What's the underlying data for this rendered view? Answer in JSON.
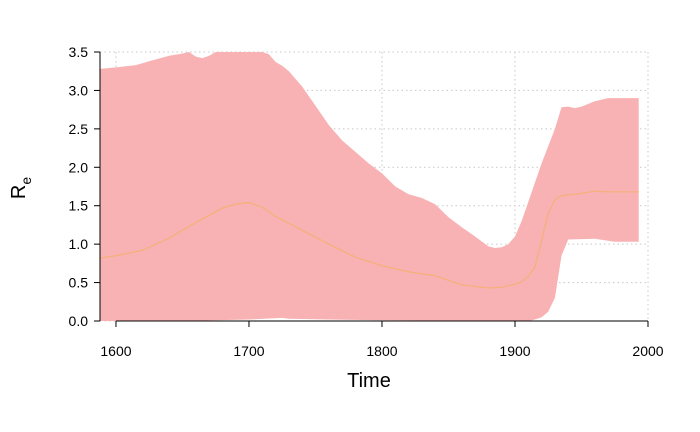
{
  "chart_data": {
    "type": "area",
    "xlabel": "Time",
    "ylabel": {
      "main": "R",
      "subscript": "e"
    },
    "xlim": [
      1588,
      2000
    ],
    "ylim": [
      0,
      3.5
    ],
    "x_ticks": [
      1600,
      1700,
      1800,
      1900,
      2000
    ],
    "y_ticks": [
      "0.0",
      "0.5",
      "1.0",
      "1.5",
      "2.0",
      "2.5",
      "3.0",
      "3.5"
    ],
    "grid": true,
    "colors": {
      "band": "#f8b2b4",
      "median": "#f5b07c",
      "grid": "#c8c8c8",
      "axis": "#000000"
    },
    "series": [
      {
        "role": "upper",
        "x": [
          1588,
          1600,
          1615,
          1625,
          1640,
          1650,
          1655,
          1660,
          1665,
          1670,
          1675,
          1680,
          1690,
          1700,
          1710,
          1715,
          1720,
          1725,
          1730,
          1740,
          1750,
          1760,
          1770,
          1780,
          1790,
          1800,
          1810,
          1820,
          1830,
          1840,
          1850,
          1860,
          1870,
          1880,
          1885,
          1890,
          1895,
          1900,
          1905,
          1910,
          1920,
          1930,
          1935,
          1940,
          1945,
          1950,
          1960,
          1970,
          1980,
          1993
        ],
        "values": [
          3.28,
          3.3,
          3.33,
          3.38,
          3.45,
          3.48,
          3.5,
          3.44,
          3.42,
          3.45,
          3.5,
          3.5,
          3.5,
          3.5,
          3.5,
          3.47,
          3.37,
          3.32,
          3.25,
          3.05,
          2.8,
          2.55,
          2.35,
          2.2,
          2.05,
          1.92,
          1.75,
          1.65,
          1.6,
          1.52,
          1.35,
          1.22,
          1.1,
          0.97,
          0.95,
          0.96,
          1.0,
          1.1,
          1.3,
          1.55,
          2.05,
          2.5,
          2.78,
          2.79,
          2.77,
          2.79,
          2.86,
          2.9,
          2.9,
          2.9
        ]
      },
      {
        "role": "lower",
        "x": [
          1588,
          1650,
          1700,
          1725,
          1730,
          1760,
          1800,
          1900,
          1910,
          1915,
          1920,
          1925,
          1930,
          1935,
          1940,
          1960,
          1975,
          1993
        ],
        "values": [
          0.0,
          0.0,
          0.02,
          0.04,
          0.03,
          0.02,
          0.01,
          0.0,
          0.0,
          0.02,
          0.05,
          0.12,
          0.3,
          0.85,
          1.06,
          1.07,
          1.03,
          1.03
        ]
      },
      {
        "role": "median",
        "x": [
          1588,
          1600,
          1620,
          1640,
          1660,
          1680,
          1690,
          1700,
          1710,
          1720,
          1740,
          1760,
          1780,
          1800,
          1820,
          1840,
          1860,
          1880,
          1890,
          1900,
          1905,
          1910,
          1915,
          1920,
          1925,
          1930,
          1935,
          1940,
          1950,
          1960,
          1970,
          1993
        ],
        "values": [
          0.82,
          0.85,
          0.92,
          1.08,
          1.28,
          1.47,
          1.52,
          1.54,
          1.48,
          1.36,
          1.18,
          1.0,
          0.83,
          0.72,
          0.64,
          0.59,
          0.47,
          0.43,
          0.44,
          0.48,
          0.51,
          0.58,
          0.7,
          1.05,
          1.4,
          1.58,
          1.63,
          1.64,
          1.66,
          1.69,
          1.68,
          1.68
        ]
      }
    ]
  }
}
